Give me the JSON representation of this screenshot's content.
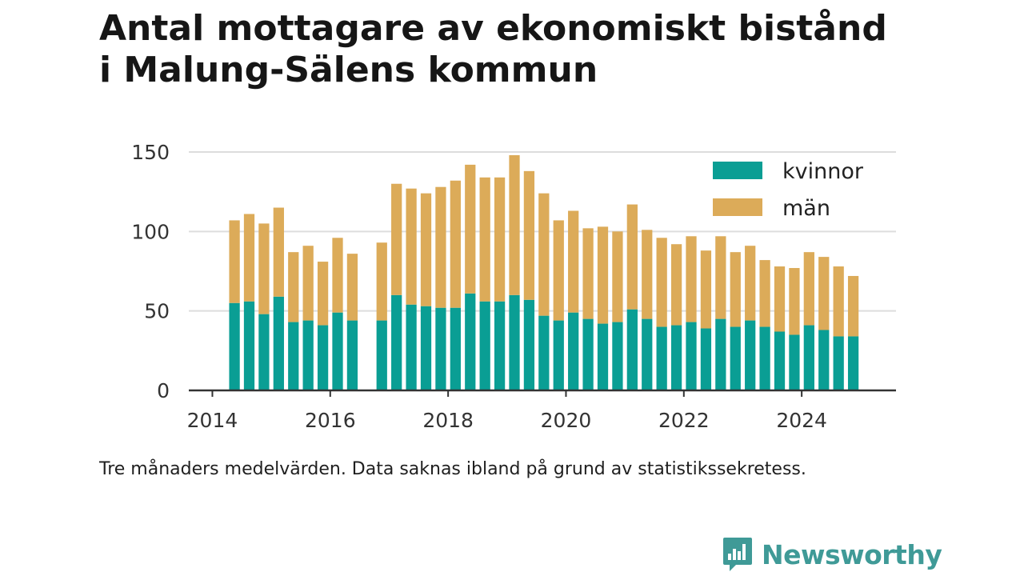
{
  "title_line1": "Antal mottagare av ekonomiskt bistånd",
  "title_line2": "i Malung-Sälens kommun",
  "note": "Tre månaders medelvärden. Data saknas ibland på grund av statistikssekretess.",
  "brand": "Newsworthy",
  "chart_data": {
    "type": "bar",
    "stacked": true,
    "x_unit": "year",
    "xlim": [
      2013.6,
      2025.6
    ],
    "ylim": [
      0,
      150
    ],
    "y_ticks": [
      0,
      50,
      100,
      150
    ],
    "x_ticks": [
      2014,
      2016,
      2018,
      2020,
      2022,
      2024
    ],
    "y_tick_labels": [
      "0",
      "50",
      "100",
      "150"
    ],
    "x_tick_labels": [
      "2014",
      "2016",
      "2018",
      "2020",
      "2022",
      "2024"
    ],
    "grid": "horizontal",
    "legend_position": "top-right",
    "x": [
      2014.375,
      2014.625,
      2014.875,
      2015.125,
      2015.375,
      2015.625,
      2015.875,
      2016.125,
      2016.375,
      2016.875,
      2017.125,
      2017.375,
      2017.625,
      2017.875,
      2018.125,
      2018.375,
      2018.625,
      2018.875,
      2019.125,
      2019.375,
      2019.625,
      2019.875,
      2020.125,
      2020.375,
      2020.625,
      2020.875,
      2021.125,
      2021.375,
      2021.625,
      2021.875,
      2022.125,
      2022.375,
      2022.625,
      2022.875,
      2023.125,
      2023.375,
      2023.625,
      2023.875,
      2024.125,
      2024.375,
      2024.625,
      2024.875
    ],
    "series": [
      {
        "name": "kvinnor",
        "color": "#0a9e94",
        "values": [
          55,
          56,
          48,
          59,
          43,
          44,
          41,
          49,
          44,
          44,
          60,
          54,
          53,
          52,
          52,
          61,
          56,
          56,
          60,
          57,
          47,
          44,
          49,
          45,
          42,
          43,
          51,
          45,
          40,
          41,
          43,
          39,
          45,
          40,
          44,
          40,
          37,
          35,
          41,
          38,
          34,
          34
        ]
      },
      {
        "name": "män",
        "color": "#dcab59",
        "values": [
          52,
          55,
          57,
          56,
          44,
          47,
          40,
          47,
          42,
          49,
          70,
          73,
          71,
          76,
          80,
          81,
          78,
          78,
          88,
          81,
          77,
          63,
          64,
          57,
          61,
          57,
          66,
          56,
          56,
          51,
          54,
          49,
          52,
          47,
          47,
          42,
          41,
          42,
          46,
          46,
          44,
          38
        ]
      }
    ]
  }
}
